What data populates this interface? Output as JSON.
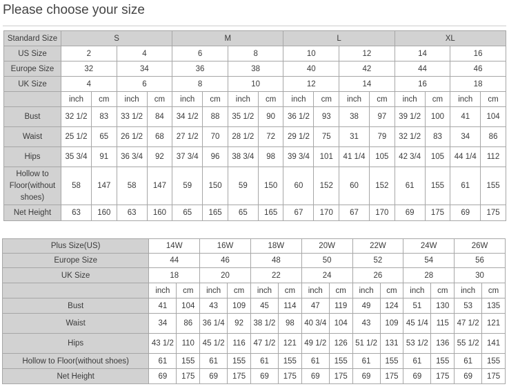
{
  "title": "Please choose your size",
  "standard_table": {
    "standard_label": "Standard Size",
    "standard_groups": [
      "S",
      "M",
      "L",
      "XL"
    ],
    "us_label": "US Size",
    "us": [
      "2",
      "4",
      "6",
      "8",
      "10",
      "12",
      "14",
      "16"
    ],
    "europe_label": "Europe Size",
    "europe": [
      "32",
      "34",
      "36",
      "38",
      "40",
      "42",
      "44",
      "46"
    ],
    "uk_label": "UK Size",
    "uk": [
      "4",
      "6",
      "8",
      "10",
      "12",
      "14",
      "16",
      "18"
    ],
    "unit_inch": "inch",
    "unit_cm": "cm",
    "measurements": [
      {
        "label": "Bust",
        "values": [
          "32 1/2",
          "83",
          "33 1/2",
          "84",
          "34 1/2",
          "88",
          "35 1/2",
          "90",
          "36 1/2",
          "93",
          "38",
          "97",
          "39 1/2",
          "100",
          "41",
          "104"
        ]
      },
      {
        "label": "Waist",
        "values": [
          "25 1/2",
          "65",
          "26 1/2",
          "68",
          "27 1/2",
          "70",
          "28 1/2",
          "72",
          "29 1/2",
          "75",
          "31",
          "79",
          "32 1/2",
          "83",
          "34",
          "86"
        ]
      },
      {
        "label": "Hips",
        "values": [
          "35 3/4",
          "91",
          "36 3/4",
          "92",
          "37 3/4",
          "96",
          "38 3/4",
          "98",
          "39 3/4",
          "101",
          "41 1/4",
          "105",
          "42 3/4",
          "105",
          "44 1/4",
          "112"
        ]
      },
      {
        "label": "Hollow to Floor(without shoes)",
        "values": [
          "58",
          "147",
          "58",
          "147",
          "59",
          "150",
          "59",
          "150",
          "60",
          "152",
          "60",
          "152",
          "61",
          "155",
          "61",
          "155"
        ]
      },
      {
        "label": "Net Height",
        "values": [
          "63",
          "160",
          "63",
          "160",
          "65",
          "165",
          "65",
          "165",
          "67",
          "170",
          "67",
          "170",
          "69",
          "175",
          "69",
          "175"
        ]
      }
    ]
  },
  "plus_table": {
    "us_label": "Plus Size(US)",
    "us": [
      "14W",
      "16W",
      "18W",
      "20W",
      "22W",
      "24W",
      "26W"
    ],
    "europe_label": "Europe Size",
    "europe": [
      "44",
      "46",
      "48",
      "50",
      "52",
      "54",
      "56"
    ],
    "uk_label": "UK Size",
    "uk": [
      "18",
      "20",
      "22",
      "24",
      "26",
      "28",
      "30"
    ],
    "unit_inch": "inch",
    "unit_cm": "cm",
    "measurements": [
      {
        "label": "Bust",
        "values": [
          "41",
          "104",
          "43",
          "109",
          "45",
          "114",
          "47",
          "119",
          "49",
          "124",
          "51",
          "130",
          "53",
          "135"
        ]
      },
      {
        "label": "Waist",
        "values": [
          "34",
          "86",
          "36 1/4",
          "92",
          "38 1/2",
          "98",
          "40 3/4",
          "104",
          "43",
          "109",
          "45 1/4",
          "115",
          "47 1/2",
          "121"
        ]
      },
      {
        "label": "Hips",
        "values": [
          "43 1/2",
          "110",
          "45 1/2",
          "116",
          "47 1/2",
          "121",
          "49 1/2",
          "126",
          "51 1/2",
          "131",
          "53 1/2",
          "136",
          "55 1/2",
          "141"
        ]
      },
      {
        "label": "Hollow to Floor(without shoes)",
        "values": [
          "61",
          "155",
          "61",
          "155",
          "61",
          "155",
          "61",
          "155",
          "61",
          "155",
          "61",
          "155",
          "61",
          "155"
        ]
      },
      {
        "label": "Net Height",
        "values": [
          "69",
          "175",
          "69",
          "175",
          "69",
          "175",
          "69",
          "175",
          "69",
          "175",
          "69",
          "175",
          "69",
          "175"
        ]
      }
    ]
  }
}
